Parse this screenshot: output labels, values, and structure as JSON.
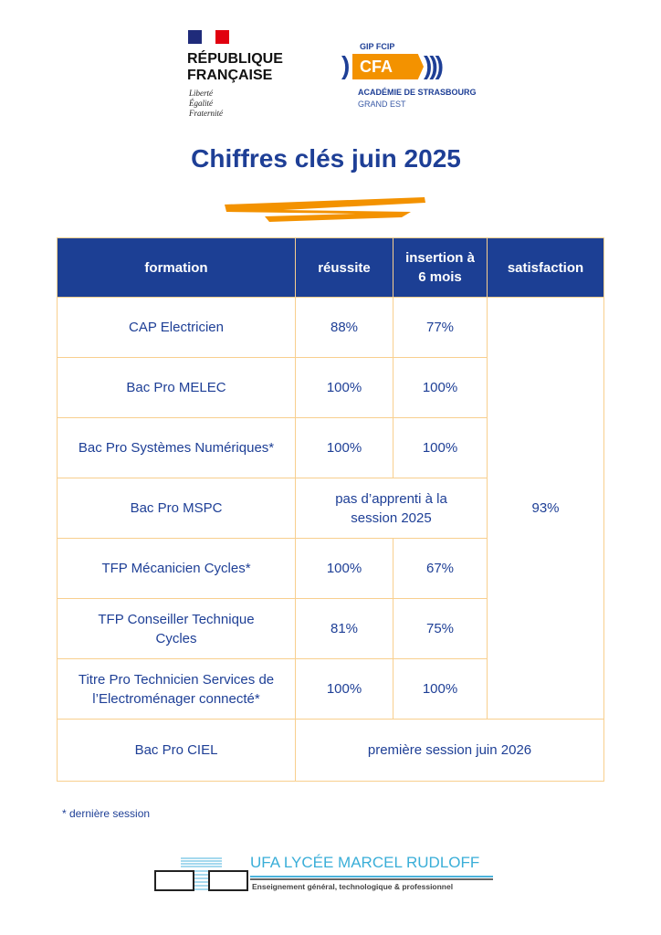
{
  "header": {
    "republique": {
      "line1": "RÉPUBLIQUE",
      "line2": "FRANÇAISE",
      "motto": [
        "Liberté",
        "Égalité",
        "Fraternité"
      ]
    },
    "cfa": {
      "top": "GIP FCIP",
      "name": "CFA",
      "line1": "ACADÉMIE DE STRASBOURG",
      "line2": "GRAND EST"
    }
  },
  "title": "Chiffres clés juin 2025",
  "colors": {
    "primary": "#1c3f94",
    "accent": "#f39200",
    "border": "#f8cf8e"
  },
  "table": {
    "headers": [
      "formation",
      "réussite",
      "insertion à 6 mois",
      "satisfaction"
    ],
    "satisfaction": "93%",
    "rows": [
      {
        "formation": "CAP Electricien",
        "reussite": "88%",
        "insertion": "77%"
      },
      {
        "formation": "Bac Pro MELEC",
        "reussite": "100%",
        "insertion": "100%"
      },
      {
        "formation": "Bac Pro Systèmes Numériques*",
        "reussite": "100%",
        "insertion": "100%"
      },
      {
        "formation": "Bac Pro MSPC",
        "merged": "pas d’apprenti à la session 2025"
      },
      {
        "formation": "TFP Mécanicien Cycles*",
        "reussite": "100%",
        "insertion": "67%"
      },
      {
        "formation": "TFP Conseiller Technique Cycles",
        "reussite": "81%",
        "insertion": "75%"
      },
      {
        "formation": "Titre Pro Technicien Services de l’Electroménager connecté*",
        "reussite": "100%",
        "insertion": "100%"
      }
    ],
    "last_row": {
      "formation": "Bac Pro CIEL",
      "merged": "première session juin 2026"
    }
  },
  "footnote": "*  dernière session",
  "footer": {
    "name": "UFA LYCÉE MARCEL RUDLOFF",
    "subtitle": "Enseignement général, technologique & professionnel"
  }
}
